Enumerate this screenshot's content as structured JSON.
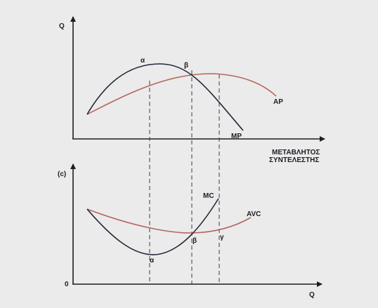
{
  "colors": {
    "background": "#ebebeb",
    "axis": "#1c1c24",
    "mp_mc_curve": "#26283a",
    "ap_avc_curve": "#b5665f",
    "guides": "#2a2a2a"
  },
  "top_panel": {
    "y_axis_label": "Q",
    "x_axis_label_line1": "ΜΕΤΑΒΛΗΤΟΣ",
    "x_axis_label_line2": "ΣΥΝΤΕΛΕΣΤΗΣ",
    "curves": {
      "mp": "MP",
      "ap": "AP"
    },
    "points": {
      "a": "α",
      "b": "β"
    }
  },
  "bottom_panel": {
    "panel_tag": "(c)",
    "origin_label": "0",
    "x_axis_label": "Q",
    "curves": {
      "mc": "MC",
      "avc": "AVC"
    },
    "points": {
      "a": "α",
      "b": "β",
      "g": "γ"
    }
  }
}
